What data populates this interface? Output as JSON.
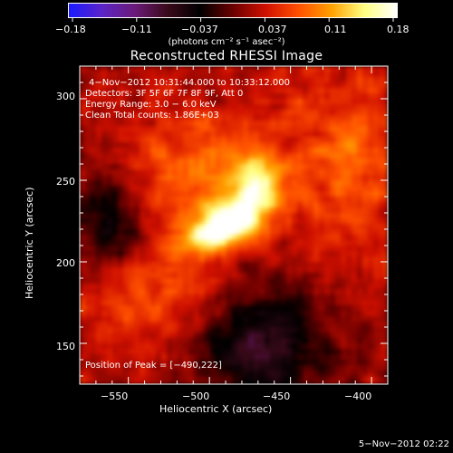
{
  "colorbar": {
    "colors": [
      "#1a1aff",
      "#5a24c8",
      "#6b1a7a",
      "#3a0a1a",
      "#000000",
      "#6a0000",
      "#d01000",
      "#ff5000",
      "#ffa000",
      "#ffff80",
      "#ffffff"
    ],
    "tick_labels": [
      "−0.18",
      "−0.11",
      "−0.037",
      "0.037",
      "0.11",
      "0.18"
    ],
    "unit_label": "(photons cm⁻² s⁻¹ asec⁻²)",
    "range": [
      -0.18,
      0.18
    ]
  },
  "chart_data": {
    "type": "heatmap",
    "title": "Reconstructed RHESSI Image",
    "xlabel": "Heliocentric X (arcsec)",
    "ylabel": "Heliocentric Y (arcsec)",
    "xlim": [
      -580,
      -390
    ],
    "ylim": [
      125,
      320
    ],
    "x_ticks": [
      -550,
      -500,
      -450,
      -400
    ],
    "y_ticks": [
      150,
      200,
      250,
      300
    ],
    "x_tick_labels": [
      "−550",
      "−500",
      "−450",
      "−400"
    ],
    "y_tick_labels": [
      "150",
      "200",
      "250",
      "300"
    ],
    "peak": {
      "x": -490,
      "y": 222,
      "value": 0.18
    },
    "annotations": {
      "time_range": "4−Nov−2012 10:31:44.000 to 10:33:12.000",
      "detectors": "Detectors: 3F 5F 6F 7F 8F 9F, Att 0",
      "energy": "Energy Range: 3.0 − 6.0 keV",
      "clean": "Clean     Total counts: 1.86E+03",
      "peak_position": "Position of Peak = [−490,222]"
    }
  },
  "footer": {
    "date": "5−Nov−2012 02:22"
  }
}
